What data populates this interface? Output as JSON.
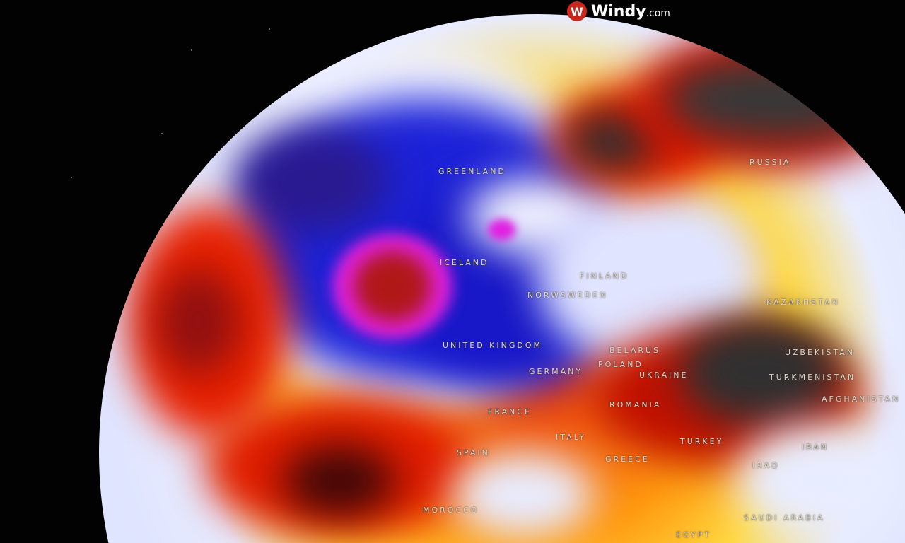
{
  "brand": {
    "name": "Windy",
    "suffix": ".com",
    "icon": "windy-logo-icon",
    "color": "#c8281e"
  },
  "labels": [
    {
      "id": "greenland",
      "text": "GREENLAND"
    },
    {
      "id": "russia",
      "text": "RUSSIA"
    },
    {
      "id": "iceland",
      "text": "ICELAND"
    },
    {
      "id": "finland",
      "text": "FINLAND"
    },
    {
      "id": "norway-sweden",
      "text": "NORWSWEDEN"
    },
    {
      "id": "united-kingdom",
      "text": "UNITED KINGDOM"
    },
    {
      "id": "belarus",
      "text": "BELARUS"
    },
    {
      "id": "poland",
      "text": "POLAND"
    },
    {
      "id": "germany",
      "text": "GERMANY"
    },
    {
      "id": "ukraine",
      "text": "UKRAINE"
    },
    {
      "id": "kazakhstan",
      "text": "KAZAKHSTAN"
    },
    {
      "id": "uzbekistan",
      "text": "UZBEKISTAN"
    },
    {
      "id": "turkmenistan",
      "text": "TURKMENISTAN"
    },
    {
      "id": "afghanistan",
      "text": "AFGHANISTAN"
    },
    {
      "id": "romania",
      "text": "ROMANIA"
    },
    {
      "id": "france",
      "text": "FRANCE"
    },
    {
      "id": "spain",
      "text": "SPAIN"
    },
    {
      "id": "italy",
      "text": "ITALY"
    },
    {
      "id": "greece",
      "text": "GREECE"
    },
    {
      "id": "turkey",
      "text": "TURKEY"
    },
    {
      "id": "iran",
      "text": "IRAN"
    },
    {
      "id": "iraq",
      "text": "IRAQ"
    },
    {
      "id": "saudi-arabia",
      "text": "SAUDI ARABIA"
    },
    {
      "id": "morocco",
      "text": "MOROCCO"
    },
    {
      "id": "egypt",
      "text": "EGYPT"
    }
  ],
  "colors": {
    "cold": "#1a1ad0",
    "very_cold": "#e020e0",
    "neutral": "#e8ecff",
    "warm": "#ffd000",
    "hot": "#e82000",
    "very_hot": "#3a3a3a"
  }
}
